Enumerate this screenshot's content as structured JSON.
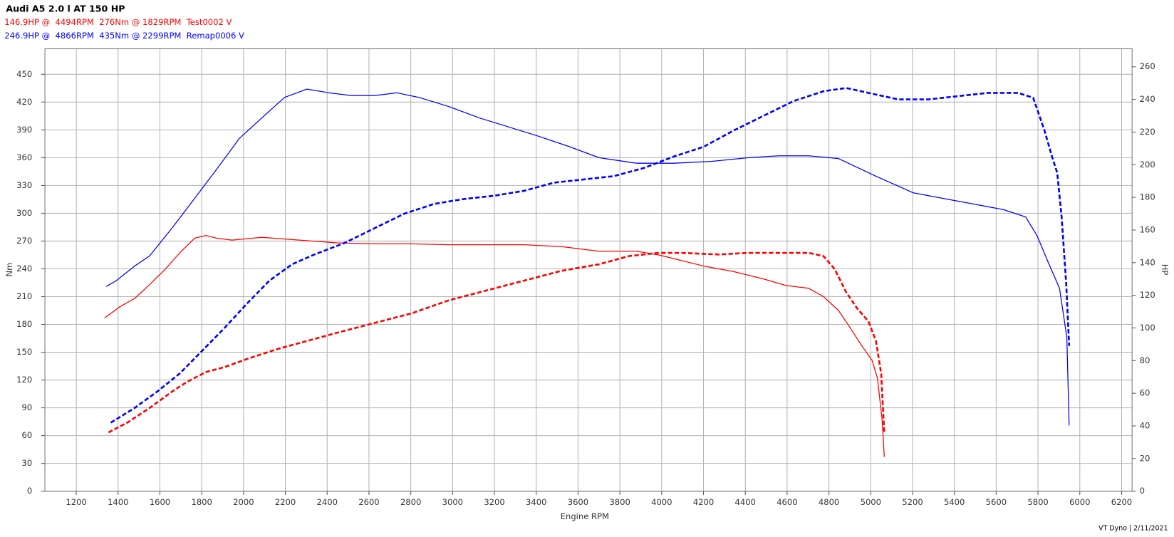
{
  "chart_data": {
    "type": "line",
    "title": "Audi A5 2.0 l AT 150 HP",
    "annotations": [
      {
        "text": "146.9HP @  4494RPM  276Nm @ 1829RPM  Test0002 V",
        "color": "#ff0000"
      },
      {
        "text": "246.9HP @  4866RPM  435Nm @ 2299RPM  Remap0006 V",
        "color": "#0000ff"
      }
    ],
    "xlabel": "Engine RPM",
    "ylabel": "Nm",
    "y2label": "HP",
    "footer": "VT Dyno | 2/11/2021",
    "xlim": [
      1050,
      6250
    ],
    "ylim": [
      0,
      477.5
    ],
    "y2lim": [
      0,
      271
    ],
    "xticks": [
      1200,
      1400,
      1600,
      1800,
      2000,
      2200,
      2400,
      2600,
      2800,
      3000,
      3200,
      3400,
      3600,
      3800,
      4000,
      4200,
      4400,
      4600,
      4800,
      5000,
      5200,
      5400,
      5600,
      5800,
      6000,
      6200
    ],
    "yticks": [
      0,
      30,
      60,
      90,
      120,
      150,
      180,
      210,
      240,
      270,
      300,
      330,
      360,
      390,
      420,
      450
    ],
    "y2ticks": [
      0,
      20,
      40,
      60,
      80,
      100,
      120,
      140,
      160,
      180,
      200,
      220,
      240,
      260
    ],
    "grid": true,
    "series": [
      {
        "color": "#ff0000",
        "dashed": false,
        "axis": "y",
        "x": [
          1336,
          1408,
          1479,
          1551,
          1623,
          1694,
          1766,
          1820,
          1873,
          1945,
          2088,
          2267,
          2446,
          2625,
          2805,
          2984,
          3163,
          3342,
          3521,
          3700,
          3879,
          3987,
          4058,
          4201,
          4345,
          4488,
          4595,
          4703,
          4774,
          4846,
          4900,
          4954,
          5007,
          5032,
          5054,
          5065
        ],
        "values": [
          187,
          199,
          208,
          223,
          239,
          257,
          273,
          276,
          273,
          271,
          274,
          271,
          268,
          267,
          267,
          266,
          266,
          266,
          264,
          259,
          259,
          255,
          251,
          243,
          237,
          229,
          222,
          219,
          210,
          195,
          177,
          158,
          141,
          122,
          78,
          37
        ]
      },
      {
        "color": "#ff0000",
        "dashed": true,
        "axis": "y2",
        "x": [
          1354,
          1444,
          1551,
          1658,
          1730,
          1820,
          1909,
          2017,
          2160,
          2303,
          2446,
          2625,
          2805,
          2984,
          3163,
          3342,
          3521,
          3700,
          3843,
          3987,
          4094,
          4273,
          4416,
          4560,
          4703,
          4774,
          4828,
          4882,
          4935,
          4989,
          5025,
          5050,
          5065
        ],
        "values": [
          36,
          42,
          51,
          61,
          67,
          73,
          76,
          81,
          87,
          92,
          97,
          103,
          109,
          117,
          123,
          129,
          135,
          139,
          144,
          146,
          146,
          145,
          146,
          146,
          146,
          144,
          136,
          122,
          112,
          104,
          92,
          72,
          35
        ]
      },
      {
        "color": "#0000ff",
        "dashed": false,
        "axis": "y",
        "x": [
          1343,
          1390,
          1479,
          1551,
          1658,
          1766,
          1873,
          1981,
          2088,
          2196,
          2303,
          2410,
          2518,
          2625,
          2733,
          2840,
          2984,
          3127,
          3270,
          3413,
          3557,
          3700,
          3879,
          4058,
          4237,
          4416,
          4560,
          4703,
          4846,
          5025,
          5204,
          5347,
          5490,
          5634,
          5741,
          5795,
          5849,
          5903,
          5938,
          5949
        ],
        "values": [
          221,
          227,
          243,
          254,
          284,
          316,
          348,
          381,
          403,
          425,
          434,
          430,
          427,
          427,
          430,
          425,
          415,
          403,
          393,
          383,
          372,
          360,
          354,
          354,
          356,
          360,
          362,
          362,
          359,
          340,
          322,
          316,
          310,
          304,
          296,
          276,
          247,
          219,
          166,
          71
        ]
      },
      {
        "color": "#0000ff",
        "dashed": true,
        "axis": "y2",
        "x": [
          1365,
          1479,
          1587,
          1694,
          1802,
          1909,
          2017,
          2124,
          2232,
          2339,
          2482,
          2625,
          2769,
          2912,
          3055,
          3199,
          3342,
          3485,
          3628,
          3772,
          3915,
          4058,
          4201,
          4345,
          4488,
          4631,
          4774,
          4882,
          4989,
          5132,
          5275,
          5418,
          5562,
          5705,
          5777,
          5831,
          5867,
          5892,
          5913,
          5935,
          5949
        ],
        "values": [
          42,
          51,
          61,
          72,
          86,
          100,
          115,
          129,
          139,
          145,
          152,
          161,
          170,
          176,
          179,
          181,
          184,
          189,
          191,
          193,
          198,
          205,
          211,
          221,
          230,
          239,
          245,
          247,
          244,
          240,
          240,
          242,
          244,
          244,
          241,
          221,
          205,
          195,
          168,
          127,
          89
        ]
      }
    ]
  }
}
